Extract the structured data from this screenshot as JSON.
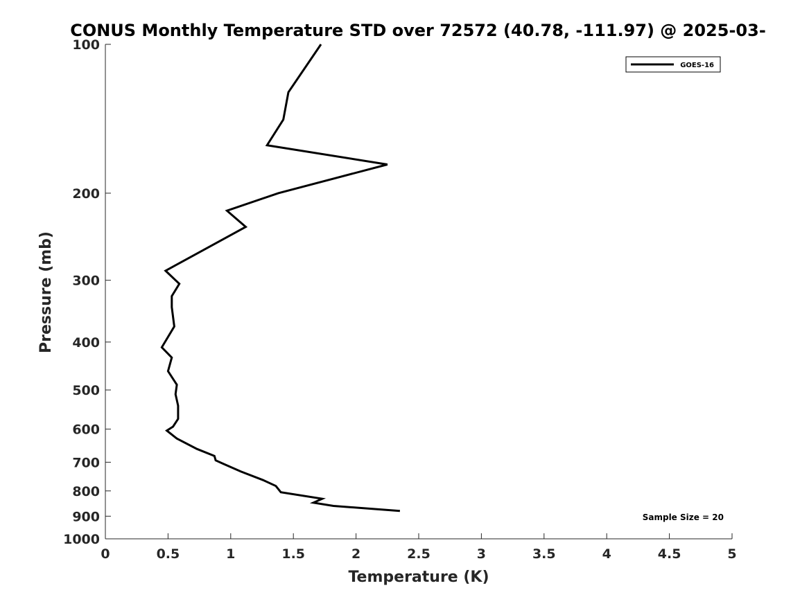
{
  "chart_data": {
    "type": "line",
    "title": "CONUS Monthly Temperature STD over 72572 (40.78, -111.97) @ 2025-03-",
    "xlabel": "Temperature (K)",
    "ylabel": "Pressure (mb)",
    "xlim": [
      0,
      5
    ],
    "ylim": [
      1000,
      100
    ],
    "yscale": "log",
    "y_reversed": true,
    "x_ticks": [
      "0",
      "0.5",
      "1",
      "1.5",
      "2",
      "2.5",
      "3",
      "3.5",
      "4",
      "4.5",
      "5"
    ],
    "y_ticks": [
      "100",
      "200",
      "300",
      "400",
      "500",
      "600",
      "700",
      "800",
      "900",
      "1000"
    ],
    "grid": false,
    "legend": {
      "position": "top-right",
      "entries": [
        "GOES-16"
      ]
    },
    "annotation": "Sample Size = 20",
    "series": [
      {
        "name": "GOES-16",
        "color": "#000000",
        "x": [
          1.72,
          1.46,
          1.42,
          1.29,
          2.25,
          1.38,
          0.97,
          1.12,
          0.73,
          0.48,
          0.59,
          0.53,
          0.53,
          0.55,
          0.45,
          0.53,
          0.5,
          0.57,
          0.56,
          0.58,
          0.58,
          0.54,
          0.49,
          0.57,
          0.73,
          0.87,
          0.88,
          0.94,
          1.08,
          1.26,
          1.36,
          1.4,
          1.73,
          1.66,
          1.82,
          2.35
        ],
        "y": [
          100,
          125,
          142,
          160,
          175,
          200,
          217,
          234,
          265,
          287,
          305,
          323,
          340,
          372,
          410,
          430,
          458,
          488,
          510,
          538,
          572,
          593,
          604,
          627,
          658,
          680,
          694,
          705,
          731,
          761,
          782,
          805,
          830,
          845,
          858,
          878
        ]
      }
    ]
  }
}
